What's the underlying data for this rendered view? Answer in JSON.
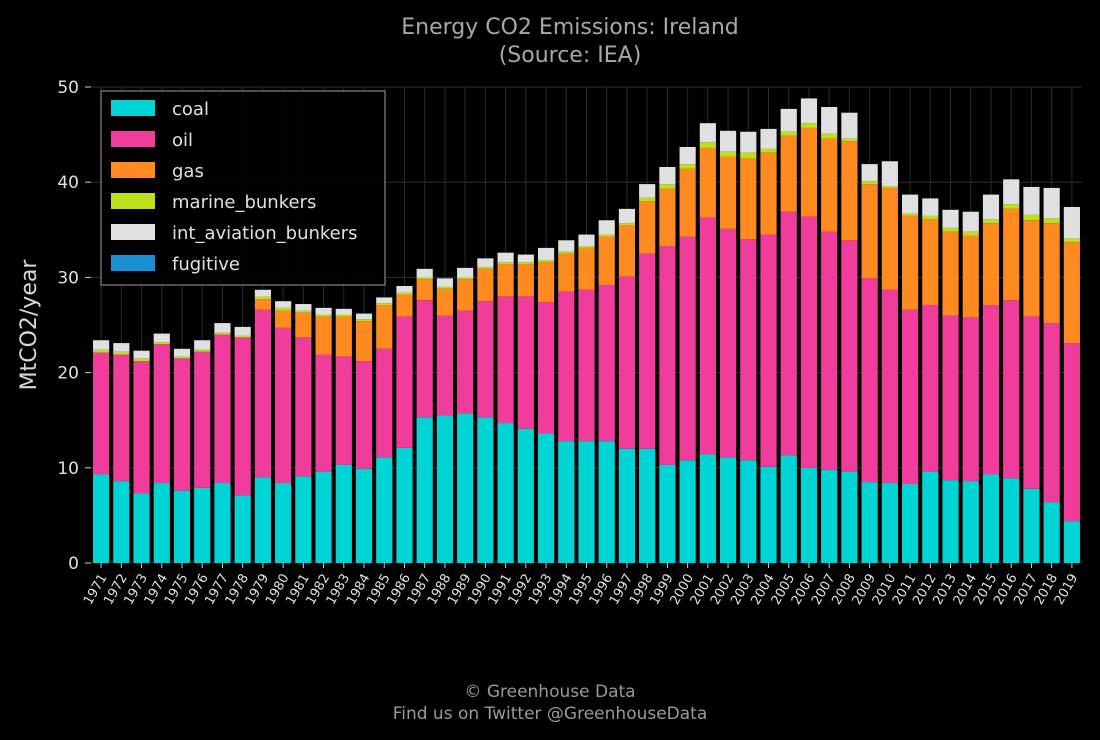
{
  "credit": {
    "line1": "© Greenhouse Data",
    "line2": "Find us on Twitter @GreenhouseData"
  },
  "chart_data": {
    "type": "bar",
    "stacked": true,
    "title": "Energy CO2 Emissions: Ireland",
    "subtitle": "(Source: IEA)",
    "xlabel": "",
    "ylabel": "MtCO2/year",
    "ylim": [
      0,
      50
    ],
    "yticks": [
      0,
      10,
      20,
      30,
      40,
      50
    ],
    "grid": true,
    "legend_position": "top-left",
    "categories": [
      "1971",
      "1972",
      "1973",
      "1974",
      "1975",
      "1976",
      "1977",
      "1978",
      "1979",
      "1980",
      "1981",
      "1982",
      "1983",
      "1984",
      "1985",
      "1986",
      "1987",
      "1988",
      "1989",
      "1990",
      "1991",
      "1992",
      "1993",
      "1994",
      "1995",
      "1996",
      "1997",
      "1998",
      "1999",
      "2000",
      "2001",
      "2002",
      "2003",
      "2004",
      "2005",
      "2006",
      "2007",
      "2008",
      "2009",
      "2010",
      "2011",
      "2012",
      "2013",
      "2014",
      "2015",
      "2016",
      "2017",
      "2018",
      "2019"
    ],
    "series": [
      {
        "name": "coal",
        "color": "#00d5d5",
        "values": [
          9.3,
          8.6,
          7.3,
          8.4,
          7.6,
          7.9,
          8.4,
          7.1,
          9.0,
          8.4,
          9.1,
          9.6,
          10.3,
          9.9,
          11.1,
          12.1,
          15.3,
          15.5,
          15.7,
          15.3,
          14.7,
          14.1,
          13.6,
          12.8,
          12.8,
          12.8,
          12.0,
          12.0,
          10.3,
          10.8,
          11.4,
          11.1,
          10.8,
          10.1,
          11.3,
          10.0,
          9.8,
          9.6,
          8.5,
          8.4,
          8.3,
          9.6,
          8.7,
          8.6,
          9.3,
          8.9,
          7.8,
          6.4,
          4.4
        ]
      },
      {
        "name": "oil",
        "color": "#f03c9a",
        "values": [
          12.8,
          13.3,
          13.9,
          14.6,
          13.9,
          14.3,
          15.6,
          16.6,
          17.6,
          16.3,
          14.6,
          12.3,
          11.4,
          11.3,
          11.4,
          13.8,
          12.3,
          10.5,
          10.8,
          12.2,
          13.3,
          13.9,
          13.8,
          15.7,
          15.9,
          16.4,
          18.1,
          20.5,
          23.0,
          23.5,
          24.9,
          24.0,
          23.2,
          24.4,
          25.6,
          26.4,
          25.0,
          24.3,
          21.4,
          20.3,
          18.3,
          17.5,
          17.3,
          17.2,
          17.8,
          18.7,
          18.1,
          18.8,
          18.7
        ]
      },
      {
        "name": "gas",
        "color": "#ff8a1f",
        "values": [
          0,
          0,
          0,
          0,
          0,
          0,
          0,
          0,
          1.1,
          1.8,
          2.6,
          4.0,
          4.2,
          4.2,
          4.6,
          2.3,
          2.2,
          2.8,
          3.3,
          3.4,
          3.4,
          3.4,
          4.2,
          4.0,
          4.4,
          5.1,
          5.4,
          5.5,
          6.0,
          7.1,
          7.3,
          7.6,
          8.5,
          8.6,
          8.0,
          9.3,
          9.8,
          10.4,
          9.9,
          10.7,
          9.9,
          9.0,
          8.8,
          8.6,
          8.6,
          9.6,
          10.1,
          10.5,
          10.6
        ]
      },
      {
        "name": "marine_bunkers",
        "color": "#bde01a",
        "values": [
          0.3,
          0.3,
          0.3,
          0.2,
          0.2,
          0.2,
          0.2,
          0.2,
          0.3,
          0.3,
          0.2,
          0.2,
          0.2,
          0.2,
          0.2,
          0.2,
          0.2,
          0.2,
          0.2,
          0.2,
          0.2,
          0.2,
          0.2,
          0.2,
          0.2,
          0.2,
          0.2,
          0.4,
          0.5,
          0.5,
          0.6,
          0.5,
          0.6,
          0.4,
          0.4,
          0.5,
          0.5,
          0.3,
          0.3,
          0.2,
          0.2,
          0.4,
          0.4,
          0.4,
          0.4,
          0.5,
          0.6,
          0.5,
          0.4
        ]
      },
      {
        "name": "int_aviation_bunkers",
        "color": "#e0e0e0",
        "values": [
          1.0,
          0.9,
          0.8,
          0.9,
          0.8,
          1.0,
          1.0,
          0.9,
          0.7,
          0.7,
          0.7,
          0.7,
          0.6,
          0.6,
          0.6,
          0.7,
          0.9,
          0.9,
          1.0,
          0.9,
          1.0,
          0.8,
          1.3,
          1.2,
          1.2,
          1.5,
          1.5,
          1.4,
          1.8,
          1.8,
          2.0,
          2.2,
          2.2,
          2.1,
          2.4,
          2.6,
          2.8,
          2.7,
          1.8,
          2.6,
          2.0,
          1.8,
          1.9,
          2.1,
          2.6,
          2.6,
          2.9,
          3.2,
          3.3
        ]
      },
      {
        "name": "fugitive",
        "color": "#1a8fd6",
        "values": [
          0,
          0,
          0,
          0,
          0,
          0,
          0,
          0,
          0,
          0,
          0,
          0,
          0,
          0,
          0,
          0,
          0,
          0,
          0,
          0,
          0,
          0,
          0,
          0,
          0,
          0,
          0,
          0,
          0,
          0,
          0,
          0,
          0,
          0,
          0,
          0,
          0,
          0,
          0,
          0,
          0,
          0,
          0,
          0,
          0,
          0,
          0,
          0,
          0
        ]
      }
    ]
  }
}
